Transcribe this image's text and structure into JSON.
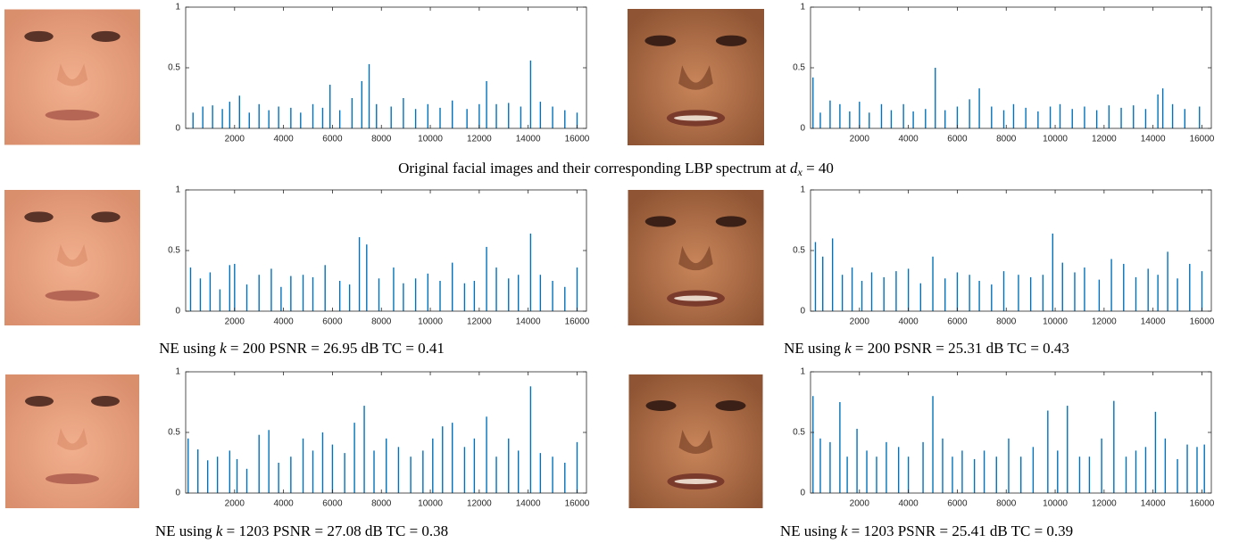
{
  "chart_data": [
    {
      "type": "bar",
      "color": "#0072bd",
      "xlim": [
        0,
        16384
      ],
      "ylim": [
        0,
        1
      ],
      "xticks": [
        2000,
        4000,
        6000,
        8000,
        10000,
        12000,
        14000,
        16000
      ],
      "yticks": [
        0,
        0.5,
        1
      ],
      "x": [
        300,
        700,
        1100,
        1500,
        1800,
        2200,
        2600,
        3000,
        3400,
        3800,
        4300,
        4700,
        5200,
        5600,
        5900,
        6300,
        6800,
        7200,
        7500,
        7800,
        8400,
        8900,
        9400,
        9900,
        10400,
        10900,
        11500,
        12000,
        12300,
        12700,
        13200,
        13700,
        14100,
        14500,
        15000,
        15500,
        16000
      ],
      "values": [
        0.13,
        0.18,
        0.19,
        0.16,
        0.22,
        0.27,
        0.13,
        0.2,
        0.15,
        0.18,
        0.17,
        0.13,
        0.2,
        0.17,
        0.36,
        0.15,
        0.25,
        0.39,
        0.53,
        0.2,
        0.18,
        0.25,
        0.16,
        0.2,
        0.17,
        0.23,
        0.16,
        0.2,
        0.39,
        0.2,
        0.21,
        0.18,
        0.56,
        0.22,
        0.18,
        0.15,
        0.13
      ]
    },
    {
      "type": "bar",
      "color": "#0072bd",
      "xlim": [
        0,
        16384
      ],
      "ylim": [
        0,
        1
      ],
      "xticks": [
        2000,
        4000,
        6000,
        8000,
        10000,
        12000,
        14000,
        16000
      ],
      "yticks": [
        0,
        0.5,
        1
      ],
      "x": [
        100,
        400,
        800,
        1200,
        1600,
        2000,
        2400,
        2900,
        3300,
        3800,
        4200,
        4700,
        5100,
        5500,
        6000,
        6500,
        6900,
        7400,
        7900,
        8300,
        8800,
        9300,
        9800,
        10200,
        10700,
        11200,
        11700,
        12200,
        12700,
        13200,
        13700,
        14200,
        14400,
        14800,
        15300,
        15900
      ],
      "values": [
        0.42,
        0.13,
        0.23,
        0.2,
        0.14,
        0.22,
        0.13,
        0.2,
        0.15,
        0.2,
        0.14,
        0.16,
        0.5,
        0.15,
        0.18,
        0.24,
        0.33,
        0.18,
        0.15,
        0.2,
        0.17,
        0.14,
        0.18,
        0.2,
        0.16,
        0.18,
        0.15,
        0.19,
        0.17,
        0.19,
        0.16,
        0.28,
        0.33,
        0.2,
        0.16,
        0.18
      ]
    },
    {
      "type": "bar",
      "color": "#0072bd",
      "xlim": [
        0,
        16384
      ],
      "ylim": [
        0,
        1
      ],
      "xticks": [
        2000,
        4000,
        6000,
        8000,
        10000,
        12000,
        14000,
        16000
      ],
      "yticks": [
        0,
        0.5,
        1
      ],
      "x": [
        200,
        600,
        1000,
        1400,
        1800,
        2000,
        2500,
        3000,
        3500,
        3900,
        4300,
        4800,
        5200,
        5700,
        6300,
        6700,
        7100,
        7400,
        7900,
        8500,
        8900,
        9400,
        9900,
        10400,
        10900,
        11400,
        11800,
        12300,
        12700,
        13200,
        13600,
        14100,
        14500,
        15000,
        15500,
        16000
      ],
      "values": [
        0.36,
        0.27,
        0.32,
        0.18,
        0.38,
        0.39,
        0.22,
        0.3,
        0.35,
        0.2,
        0.29,
        0.3,
        0.28,
        0.38,
        0.25,
        0.22,
        0.61,
        0.55,
        0.27,
        0.36,
        0.23,
        0.27,
        0.31,
        0.25,
        0.4,
        0.23,
        0.25,
        0.53,
        0.36,
        0.27,
        0.3,
        0.64,
        0.3,
        0.25,
        0.2,
        0.36
      ]
    },
    {
      "type": "bar",
      "color": "#0072bd",
      "xlim": [
        0,
        16384
      ],
      "ylim": [
        0,
        1
      ],
      "xticks": [
        2000,
        4000,
        6000,
        8000,
        10000,
        12000,
        14000,
        16000
      ],
      "yticks": [
        0,
        0.5,
        1
      ],
      "x": [
        200,
        500,
        900,
        1300,
        1700,
        2100,
        2500,
        3000,
        3500,
        4000,
        4500,
        5000,
        5500,
        6000,
        6500,
        6900,
        7400,
        7900,
        8500,
        9000,
        9500,
        9900,
        10300,
        10800,
        11200,
        11800,
        12300,
        12800,
        13300,
        13800,
        14200,
        14600,
        15000,
        15500,
        16000
      ],
      "values": [
        0.57,
        0.45,
        0.6,
        0.3,
        0.36,
        0.25,
        0.32,
        0.28,
        0.33,
        0.35,
        0.23,
        0.45,
        0.27,
        0.32,
        0.3,
        0.25,
        0.22,
        0.33,
        0.3,
        0.28,
        0.3,
        0.64,
        0.4,
        0.32,
        0.36,
        0.26,
        0.43,
        0.39,
        0.28,
        0.35,
        0.3,
        0.49,
        0.27,
        0.39,
        0.33
      ]
    },
    {
      "type": "bar",
      "color": "#0072bd",
      "xlim": [
        0,
        16384
      ],
      "ylim": [
        0,
        1
      ],
      "xticks": [
        2000,
        4000,
        6000,
        8000,
        10000,
        12000,
        14000,
        16000
      ],
      "yticks": [
        0,
        0.5,
        1
      ],
      "x": [
        100,
        500,
        900,
        1300,
        1800,
        2100,
        2500,
        3000,
        3400,
        3800,
        4300,
        4800,
        5200,
        5600,
        6000,
        6500,
        6900,
        7300,
        7700,
        8200,
        8700,
        9200,
        9700,
        10100,
        10500,
        10900,
        11400,
        11800,
        12300,
        12700,
        13200,
        13600,
        14100,
        14500,
        15000,
        15500,
        16000
      ],
      "values": [
        0.45,
        0.36,
        0.27,
        0.3,
        0.35,
        0.28,
        0.2,
        0.48,
        0.52,
        0.25,
        0.3,
        0.45,
        0.35,
        0.5,
        0.4,
        0.33,
        0.58,
        0.72,
        0.35,
        0.45,
        0.38,
        0.3,
        0.35,
        0.45,
        0.55,
        0.58,
        0.38,
        0.45,
        0.63,
        0.3,
        0.45,
        0.35,
        0.88,
        0.33,
        0.3,
        0.25,
        0.42
      ]
    },
    {
      "type": "bar",
      "color": "#0072bd",
      "xlim": [
        0,
        16384
      ],
      "ylim": [
        0,
        1
      ],
      "xticks": [
        2000,
        4000,
        6000,
        8000,
        10000,
        12000,
        14000,
        16000
      ],
      "yticks": [
        0,
        0.5,
        1
      ],
      "x": [
        100,
        400,
        800,
        1200,
        1500,
        1900,
        2300,
        2700,
        3100,
        3600,
        4000,
        4600,
        5000,
        5400,
        5800,
        6200,
        6700,
        7100,
        7600,
        8100,
        8600,
        9100,
        9700,
        10100,
        10500,
        11000,
        11400,
        11900,
        12400,
        12900,
        13300,
        13700,
        14100,
        14500,
        15000,
        15400,
        15800,
        16100
      ],
      "values": [
        0.8,
        0.45,
        0.42,
        0.75,
        0.3,
        0.53,
        0.35,
        0.3,
        0.42,
        0.38,
        0.3,
        0.42,
        0.8,
        0.45,
        0.3,
        0.35,
        0.28,
        0.35,
        0.3,
        0.45,
        0.3,
        0.38,
        0.68,
        0.35,
        0.72,
        0.3,
        0.3,
        0.45,
        0.76,
        0.3,
        0.35,
        0.38,
        0.67,
        0.45,
        0.28,
        0.4,
        0.38,
        0.4
      ]
    }
  ],
  "captions": [
    [
      "Original facial images and their corresponding LBP spectrum at",
      "d",
      "x",
      "= 40"
    ],
    [
      "NE using",
      "k",
      "= 200 PSNR = 26.95 dB TC = 0.41"
    ],
    [
      "NE using",
      "k",
      "= 200 PSNR = 25.31 dB TC = 0.43"
    ],
    [
      "NE using",
      "k",
      "= 1203 PSNR = 27.08 dB TC = 0.38"
    ],
    [
      "NE using",
      "k",
      "= 1203 PSNR = 25.41 dB TC = 0.39"
    ]
  ]
}
